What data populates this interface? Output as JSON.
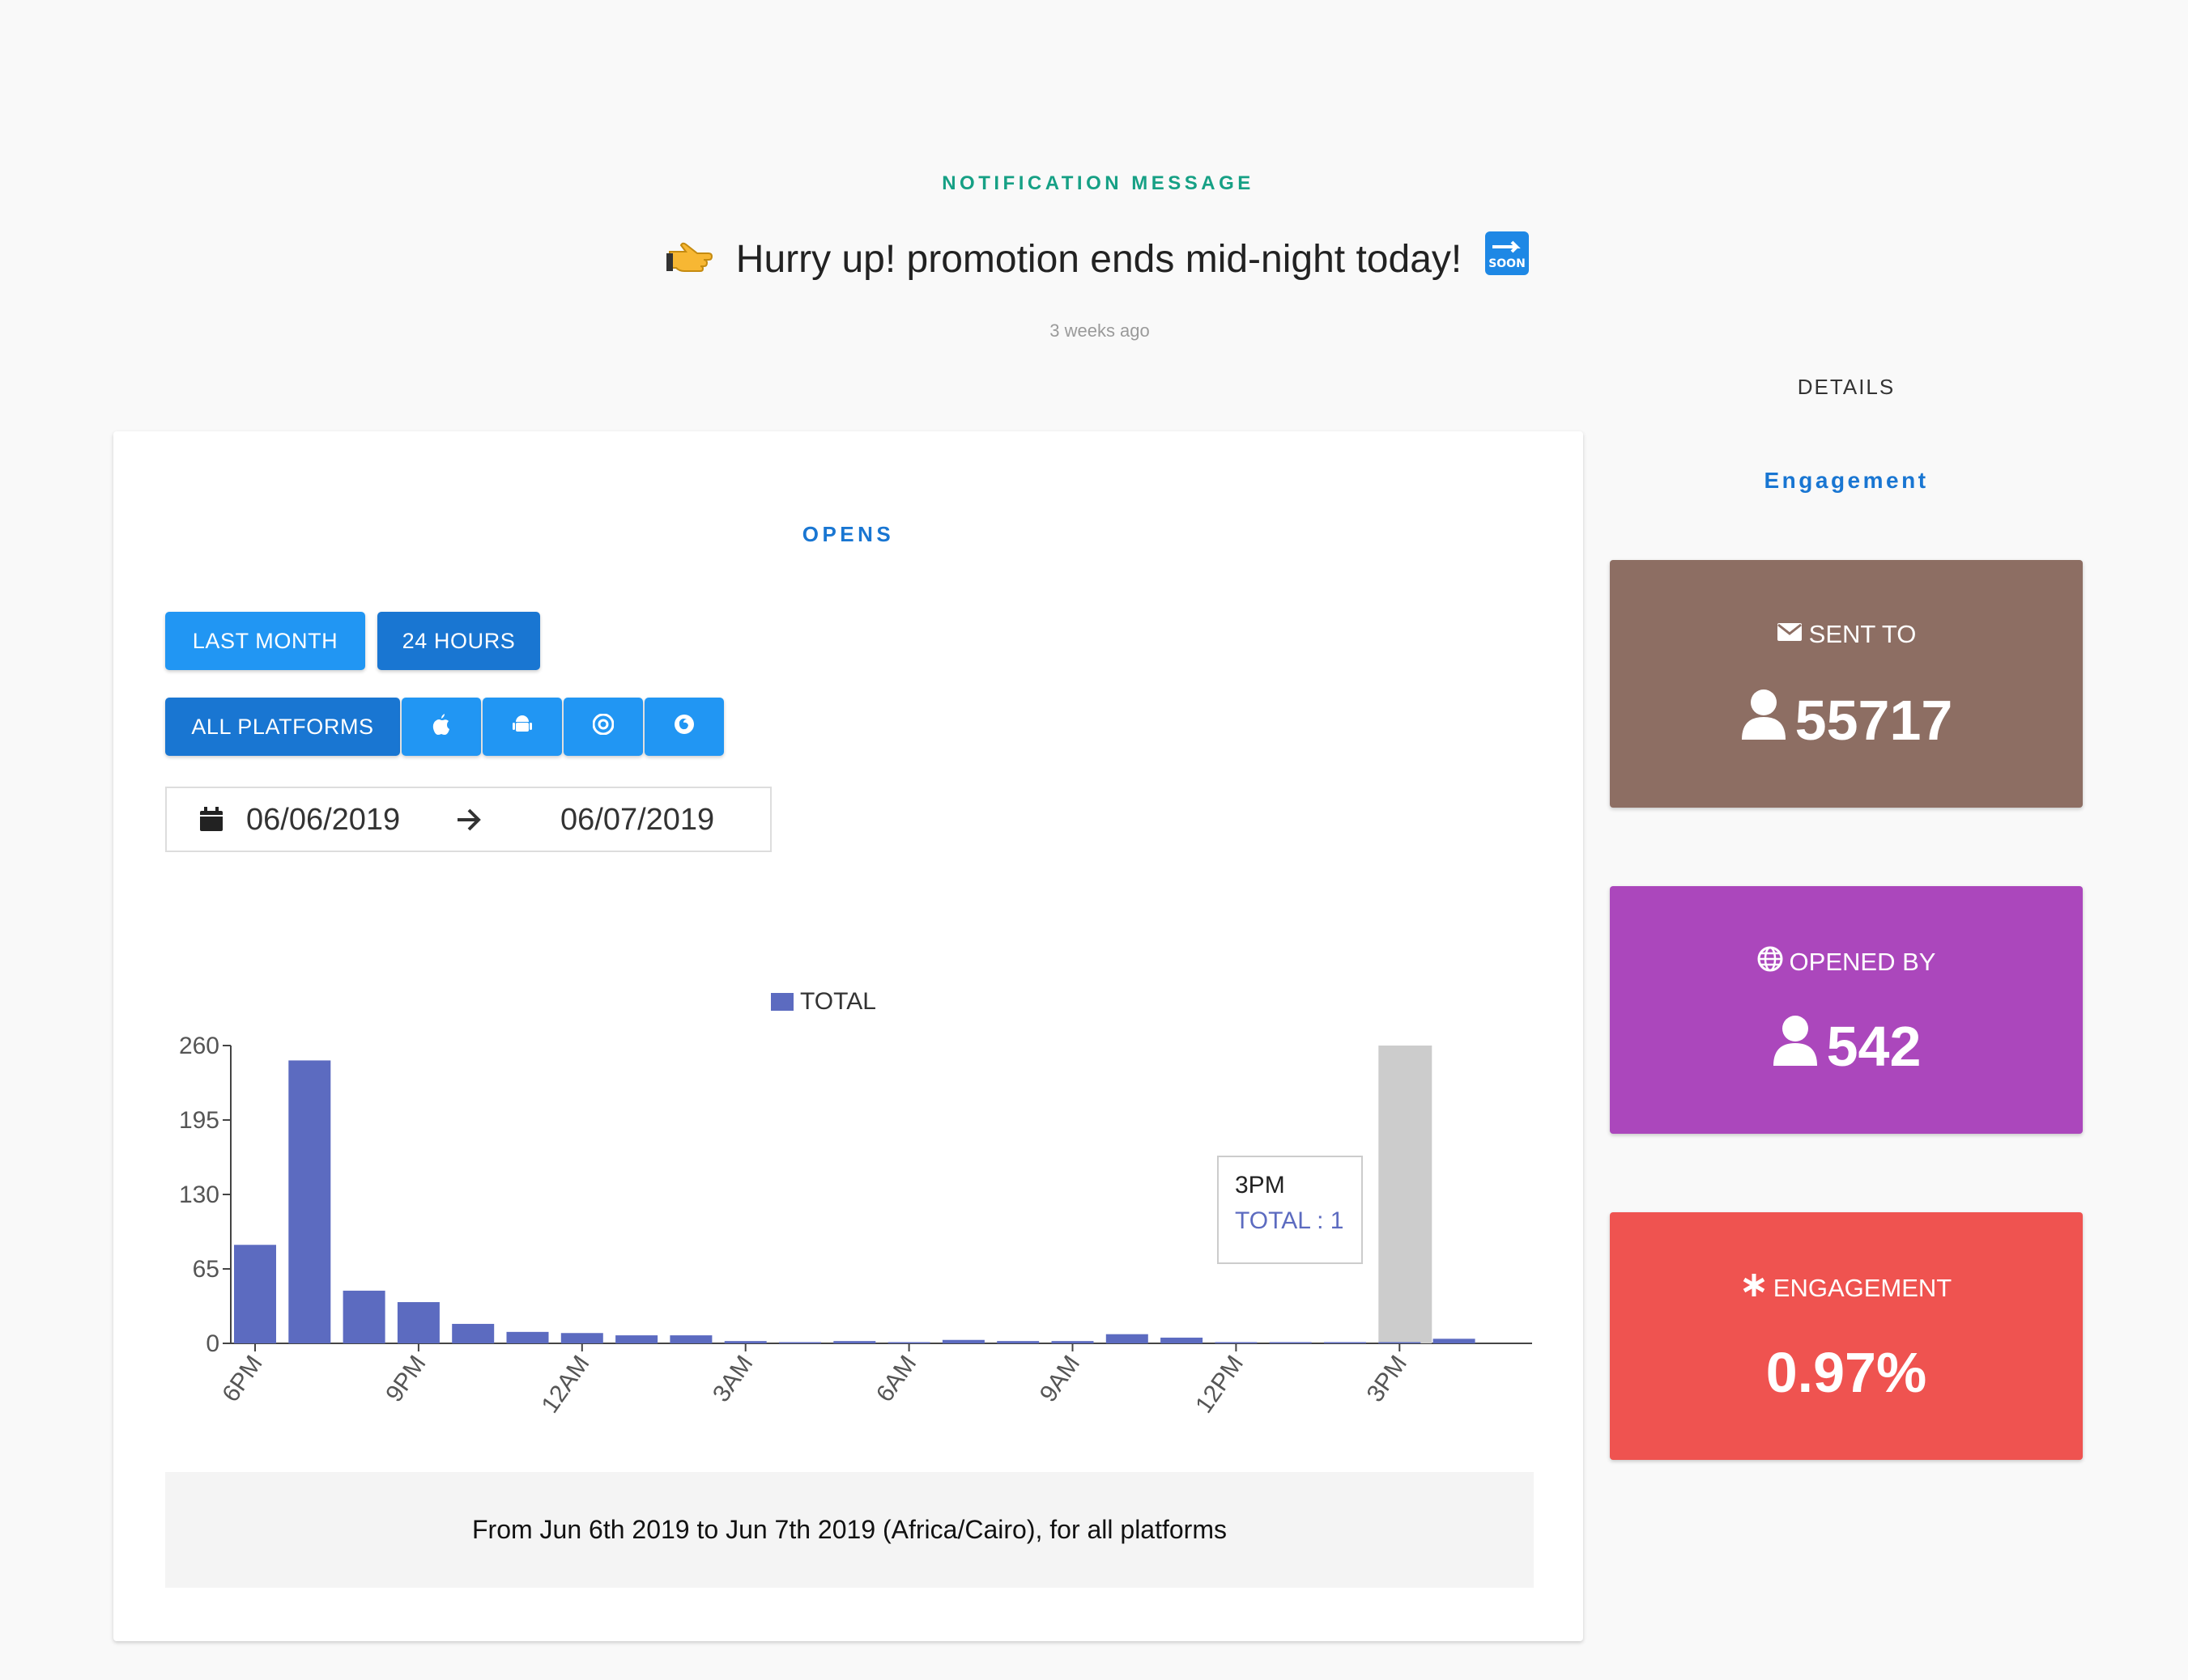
{
  "colors": {
    "teal": "#16a085",
    "blue": "#1976d2",
    "btn_light": "#2196f3",
    "btn_dark": "#1976d2",
    "bar": "#5c6bc0",
    "bar_highlight": "#cccccc",
    "sent": "#8d6e63",
    "opened": "#ab47bc",
    "engagement": "#ef5350"
  },
  "header": {
    "kicker": "NOTIFICATION MESSAGE",
    "message": "Hurry up! promotion ends mid-night today!",
    "message_icons": [
      "pointing-hand-icon",
      "soon-arrow-icon"
    ],
    "time_ago": "3 weeks ago"
  },
  "sidebar": {
    "details_label": "DETAILS",
    "tab_label": "Engagement",
    "stats": [
      {
        "label": "SENT TO",
        "icon": "envelope-icon",
        "value": "55717",
        "value_icon": "user-icon"
      },
      {
        "label": "OPENED BY",
        "icon": "globe-icon",
        "value": "542",
        "value_icon": "user-icon"
      },
      {
        "label": "ENGAGEMENT",
        "icon": "asterisk-icon",
        "value": "0.97%"
      }
    ]
  },
  "opens": {
    "title": "OPENS",
    "range_buttons": [
      "LAST MONTH",
      "24 HOURS"
    ],
    "active_range": "24 HOURS",
    "platform_buttons": [
      "ALL PLATFORMS"
    ],
    "platform_icons": [
      "apple-icon",
      "android-icon",
      "chrome-icon",
      "firefox-icon"
    ],
    "date_from": "06/06/2019",
    "date_to": "06/07/2019",
    "tooltip": {
      "title": "3PM",
      "text": "TOTAL : 1"
    },
    "footer": "From Jun 6th 2019 to Jun 7th 2019 (Africa/Cairo), for all platforms"
  },
  "chart_data": {
    "type": "bar",
    "legend": [
      "TOTAL"
    ],
    "ylim": [
      0,
      260
    ],
    "yticks": [
      0,
      65,
      130,
      195,
      260
    ],
    "xtick_labels": [
      "6PM",
      "9PM",
      "12AM",
      "3AM",
      "6AM",
      "9AM",
      "12PM",
      "3PM"
    ],
    "categories": [
      "6PM",
      "7PM",
      "8PM",
      "9PM",
      "10PM",
      "11PM",
      "12AM",
      "1AM",
      "2AM",
      "3AM",
      "4AM",
      "5AM",
      "6AM",
      "7AM",
      "8AM",
      "9AM",
      "10AM",
      "11AM",
      "12PM",
      "1PM",
      "2PM",
      "3PM",
      "4PM"
    ],
    "series": [
      {
        "name": "TOTAL",
        "values": [
          86,
          247,
          46,
          36,
          17,
          10,
          9,
          7,
          7,
          2,
          1,
          2,
          1,
          3,
          2,
          2,
          8,
          5,
          1,
          1,
          1,
          1,
          4
        ]
      }
    ],
    "highlight_category": "3PM"
  }
}
